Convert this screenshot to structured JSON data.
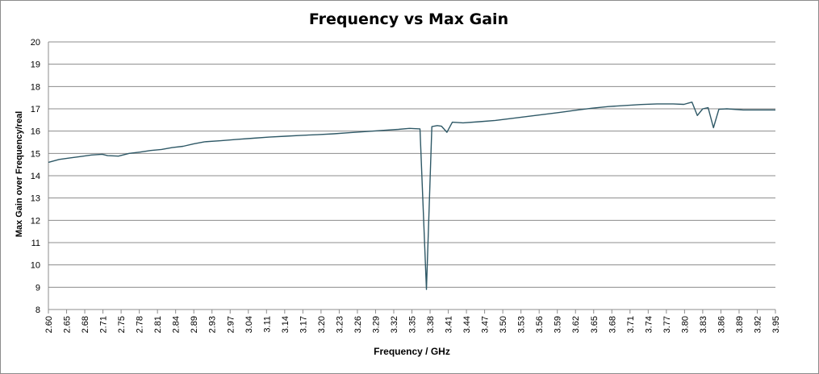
{
  "chart_data": {
    "type": "line",
    "title": "Frequency vs Max Gain",
    "xlabel": "Frequency / GHz",
    "ylabel": "Max Gain over Frequency/real",
    "ylim": [
      8,
      20
    ],
    "yticks": [
      "8",
      "9",
      "10",
      "11",
      "12",
      "13",
      "14",
      "15",
      "16",
      "17",
      "18",
      "19",
      "20"
    ],
    "xlim": [
      2.6,
      3.95
    ],
    "xticks": [
      "2.60",
      "2.65",
      "2.68",
      "2.71",
      "2.75",
      "2.78",
      "2.81",
      "2.84",
      "2.89",
      "2.93",
      "2.97",
      "3.04",
      "3.11",
      "3.14",
      "3.17",
      "3.20",
      "3.23",
      "3.26",
      "3.29",
      "3.32",
      "3.35",
      "3.38",
      "3.41",
      "3.44",
      "3.47",
      "3.50",
      "3.53",
      "3.56",
      "3.59",
      "3.62",
      "3.65",
      "3.68",
      "3.71",
      "3.74",
      "3.77",
      "3.80",
      "3.83",
      "3.86",
      "3.89",
      "3.92",
      "3.95"
    ],
    "grid": true,
    "line_color": "#2e5866",
    "series": [
      {
        "points": [
          [
            2.6,
            14.6
          ],
          [
            2.62,
            14.73
          ],
          [
            2.64,
            14.8
          ],
          [
            2.66,
            14.86
          ],
          [
            2.68,
            14.93
          ],
          [
            2.7,
            14.96
          ],
          [
            2.71,
            14.9
          ],
          [
            2.73,
            14.88
          ],
          [
            2.75,
            15.0
          ],
          [
            2.77,
            15.06
          ],
          [
            2.79,
            15.13
          ],
          [
            2.81,
            15.18
          ],
          [
            2.83,
            15.26
          ],
          [
            2.85,
            15.32
          ],
          [
            2.87,
            15.43
          ],
          [
            2.89,
            15.52
          ],
          [
            2.92,
            15.57
          ],
          [
            2.95,
            15.63
          ],
          [
            2.98,
            15.68
          ],
          [
            3.01,
            15.73
          ],
          [
            3.04,
            15.77
          ],
          [
            3.07,
            15.81
          ],
          [
            3.1,
            15.84
          ],
          [
            3.13,
            15.88
          ],
          [
            3.16,
            15.93
          ],
          [
            3.19,
            15.98
          ],
          [
            3.22,
            16.03
          ],
          [
            3.25,
            16.08
          ],
          [
            3.27,
            16.12
          ],
          [
            3.29,
            16.1
          ],
          [
            3.302,
            8.9
          ],
          [
            3.312,
            16.2
          ],
          [
            3.322,
            16.25
          ],
          [
            3.33,
            16.22
          ],
          [
            3.34,
            15.95
          ],
          [
            3.35,
            16.4
          ],
          [
            3.37,
            16.37
          ],
          [
            3.4,
            16.42
          ],
          [
            3.43,
            16.48
          ],
          [
            3.46,
            16.57
          ],
          [
            3.49,
            16.66
          ],
          [
            3.52,
            16.75
          ],
          [
            3.55,
            16.84
          ],
          [
            3.58,
            16.94
          ],
          [
            3.61,
            17.03
          ],
          [
            3.64,
            17.1
          ],
          [
            3.67,
            17.15
          ],
          [
            3.7,
            17.19
          ],
          [
            3.73,
            17.22
          ],
          [
            3.76,
            17.22
          ],
          [
            3.78,
            17.2
          ],
          [
            3.795,
            17.3
          ],
          [
            3.805,
            16.7
          ],
          [
            3.815,
            17.0
          ],
          [
            3.825,
            17.05
          ],
          [
            3.835,
            16.15
          ],
          [
            3.845,
            16.98
          ],
          [
            3.86,
            17.0
          ],
          [
            3.89,
            16.95
          ],
          [
            3.92,
            16.95
          ],
          [
            3.95,
            16.95
          ]
        ]
      }
    ]
  }
}
